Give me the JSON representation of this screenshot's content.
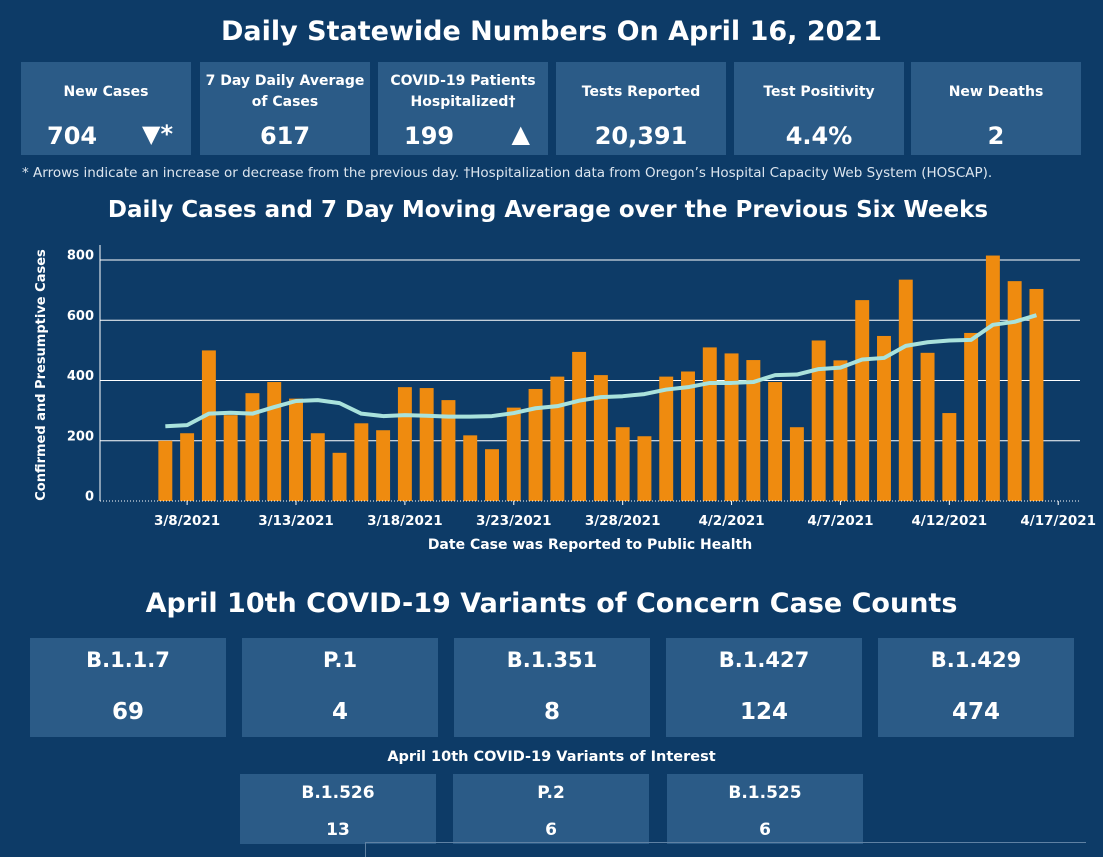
{
  "header": {
    "title": "Daily Statewide Numbers On April 16, 2021"
  },
  "kpis": [
    {
      "label": "New Cases",
      "value": "704",
      "arrow": "▼*"
    },
    {
      "label": "7 Day Daily Average of Cases",
      "value": "617"
    },
    {
      "label": "COVID-19 Patients Hospitalized†",
      "value": "199",
      "arrow": "▲"
    },
    {
      "label": "Tests Reported",
      "value": "20,391"
    },
    {
      "label": "Test Positivity",
      "value": "4.4%"
    },
    {
      "label": "New Deaths",
      "value": "2"
    }
  ],
  "footnote": "* Arrows indicate an increase or decrease from the previous day. †Hospitalization data from Oregon’s Hospital Capacity Web System (HOSCAP).",
  "chart_data": {
    "type": "bar",
    "title": "Daily Cases and 7 Day Moving Average over the Previous Six Weeks",
    "x_label": "Date Case was Reported to Public Health",
    "y_label": "Confirmed and Presumptive Cases",
    "x": [
      "2021-03-07",
      "2021-03-08",
      "2021-03-09",
      "2021-03-10",
      "2021-03-11",
      "2021-03-12",
      "2021-03-13",
      "2021-03-14",
      "2021-03-15",
      "2021-03-16",
      "2021-03-17",
      "2021-03-18",
      "2021-03-19",
      "2021-03-20",
      "2021-03-21",
      "2021-03-22",
      "2021-03-23",
      "2021-03-24",
      "2021-03-25",
      "2021-03-26",
      "2021-03-27",
      "2021-03-28",
      "2021-03-29",
      "2021-03-30",
      "2021-03-31",
      "2021-04-01",
      "2021-04-02",
      "2021-04-03",
      "2021-04-04",
      "2021-04-05",
      "2021-04-06",
      "2021-04-07",
      "2021-04-08",
      "2021-04-09",
      "2021-04-10",
      "2021-04-11",
      "2021-04-12",
      "2021-04-13",
      "2021-04-14",
      "2021-04-15",
      "2021-04-16"
    ],
    "series": [
      {
        "type": "bar",
        "color": "#ef8b0f",
        "values": [
          200,
          225,
          500,
          285,
          358,
          395,
          340,
          225,
          160,
          258,
          235,
          378,
          375,
          335,
          218,
          172,
          310,
          372,
          413,
          495,
          418,
          245,
          215,
          413,
          430,
          510,
          490,
          468,
          395,
          245,
          533,
          467,
          667,
          548,
          735,
          492,
          292,
          558,
          815,
          730,
          704
        ]
      },
      {
        "type": "line",
        "color": "#a9e2dc",
        "values": [
          248,
          252,
          290,
          293,
          290,
          312,
          332,
          335,
          325,
          290,
          282,
          285,
          283,
          280,
          280,
          282,
          292,
          308,
          315,
          333,
          345,
          348,
          355,
          370,
          378,
          392,
          392,
          395,
          418,
          420,
          438,
          443,
          470,
          475,
          515,
          527,
          533,
          535,
          585,
          595,
          617
        ]
      }
    ],
    "xlim": [
      "2021-03-04",
      "2021-04-18"
    ],
    "xticks": [
      {
        "value": "2021-03-08",
        "label": "3/8/2021"
      },
      {
        "value": "2021-03-13",
        "label": "3/13/2021"
      },
      {
        "value": "2021-03-18",
        "label": "3/18/2021"
      },
      {
        "value": "2021-03-23",
        "label": "3/23/2021"
      },
      {
        "value": "2021-03-28",
        "label": "3/28/2021"
      },
      {
        "value": "2021-04-02",
        "label": "4/2/2021"
      },
      {
        "value": "2021-04-07",
        "label": "4/7/2021"
      },
      {
        "value": "2021-04-12",
        "label": "4/12/2021"
      },
      {
        "value": "2021-04-17",
        "label": "4/17/2021"
      }
    ],
    "ylim": [
      0,
      850
    ],
    "yticks": [
      0,
      200,
      400,
      600,
      800
    ],
    "grid": true
  },
  "variants": {
    "title": "April 10th  COVID-19 Variants of Concern Case Counts",
    "concern": [
      {
        "name": "B.1.1.7",
        "count": "69"
      },
      {
        "name": "P.1",
        "count": "4"
      },
      {
        "name": "B.1.351",
        "count": "8"
      },
      {
        "name": "B.1.427",
        "count": "124"
      },
      {
        "name": "B.1.429",
        "count": "474"
      }
    ],
    "interest_title": "April 10th COVID-19 Variants of Interest",
    "interest": [
      {
        "name": "B.1.526",
        "count": "13"
      },
      {
        "name": "P.2",
        "count": "6"
      },
      {
        "name": "B.1.525",
        "count": "6"
      }
    ]
  }
}
